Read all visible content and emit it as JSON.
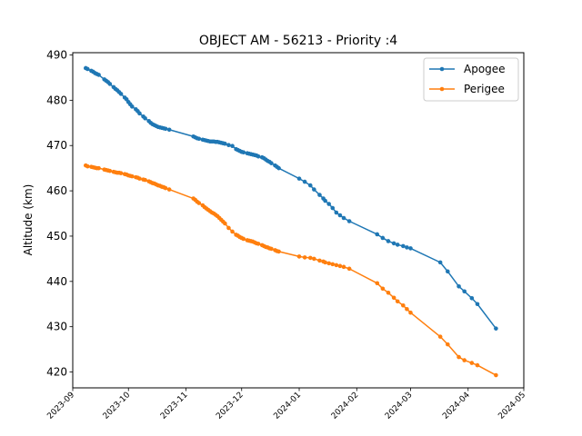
{
  "chart_data": {
    "type": "line",
    "title": "OBJECT AM - 56213 - Priority :4",
    "xlabel": "",
    "ylabel": "Altitude (km)",
    "ylim": [
      416.5,
      490.5
    ],
    "xlim": [
      "2023-09-01",
      "2024-05-01"
    ],
    "x_ticks": [
      "2023-09",
      "2023-10",
      "2023-11",
      "2023-12",
      "2024-01",
      "2024-02",
      "2024-03",
      "2024-04",
      "2024-05"
    ],
    "y_ticks": [
      420,
      430,
      440,
      450,
      460,
      470,
      480,
      490
    ],
    "grid": false,
    "legend_position": "upper right",
    "series": [
      {
        "name": "Apogee",
        "color": "#1f77b4",
        "x": [
          "2023-09-08",
          "2023-09-09",
          "2023-09-11",
          "2023-09-12",
          "2023-09-13",
          "2023-09-14",
          "2023-09-15",
          "2023-09-18",
          "2023-09-19",
          "2023-09-20",
          "2023-09-21",
          "2023-09-23",
          "2023-09-24",
          "2023-09-25",
          "2023-09-26",
          "2023-09-27",
          "2023-09-29",
          "2023-09-30",
          "2023-10-01",
          "2023-10-02",
          "2023-10-03",
          "2023-10-05",
          "2023-10-06",
          "2023-10-07",
          "2023-10-09",
          "2023-10-10",
          "2023-10-12",
          "2023-10-13",
          "2023-10-14",
          "2023-10-15",
          "2023-10-16",
          "2023-10-17",
          "2023-10-18",
          "2023-10-19",
          "2023-10-20",
          "2023-10-21",
          "2023-10-23",
          "2023-11-05",
          "2023-11-06",
          "2023-11-07",
          "2023-11-08",
          "2023-11-10",
          "2023-11-11",
          "2023-11-12",
          "2023-11-13",
          "2023-11-14",
          "2023-11-15",
          "2023-11-16",
          "2023-11-17",
          "2023-11-18",
          "2023-11-19",
          "2023-11-20",
          "2023-11-21",
          "2023-11-22",
          "2023-11-24",
          "2023-11-26",
          "2023-11-28",
          "2023-11-29",
          "2023-11-30",
          "2023-12-01",
          "2023-12-02",
          "2023-12-04",
          "2023-12-05",
          "2023-12-06",
          "2023-12-07",
          "2023-12-08",
          "2023-12-09",
          "2023-12-10",
          "2023-12-12",
          "2023-12-13",
          "2023-12-14",
          "2023-12-15",
          "2023-12-16",
          "2023-12-17",
          "2023-12-19",
          "2023-12-20",
          "2023-12-21",
          "2024-01-01",
          "2024-01-04",
          "2024-01-07",
          "2024-01-09",
          "2024-01-12",
          "2024-01-14",
          "2024-01-15",
          "2024-01-17",
          "2024-01-19",
          "2024-01-21",
          "2024-01-23",
          "2024-01-25",
          "2024-01-28",
          "2024-02-12",
          "2024-02-15",
          "2024-02-18",
          "2024-02-21",
          "2024-02-23",
          "2024-02-26",
          "2024-02-28",
          "2024-03-01",
          "2024-03-17",
          "2024-03-21",
          "2024-03-27",
          "2024-03-30",
          "2024-04-03",
          "2024-04-06",
          "2024-04-16"
        ],
        "y": [
          487.1,
          486.9,
          486.5,
          486.3,
          486.0,
          485.8,
          485.6,
          484.6,
          484.3,
          484.0,
          483.6,
          482.9,
          482.5,
          482.2,
          481.8,
          481.4,
          480.6,
          480.2,
          479.6,
          479.1,
          478.6,
          478.0,
          477.6,
          477.1,
          476.4,
          476.0,
          475.4,
          475.0,
          474.7,
          474.5,
          474.3,
          474.1,
          474.0,
          473.9,
          473.8,
          473.7,
          473.5,
          472.0,
          471.8,
          471.6,
          471.5,
          471.3,
          471.2,
          471.1,
          471.0,
          470.9,
          470.9,
          470.9,
          470.8,
          470.8,
          470.7,
          470.6,
          470.5,
          470.4,
          470.1,
          469.9,
          469.2,
          469.0,
          468.8,
          468.6,
          468.5,
          468.3,
          468.2,
          468.1,
          468.0,
          467.9,
          467.8,
          467.6,
          467.4,
          467.2,
          466.9,
          466.6,
          466.4,
          466.1,
          465.6,
          465.3,
          465.0,
          462.7,
          462.0,
          461.2,
          460.3,
          459.1,
          458.3,
          457.8,
          457.1,
          456.2,
          455.2,
          454.6,
          454.0,
          453.3,
          450.4,
          449.6,
          448.9,
          448.4,
          448.1,
          447.8,
          447.5,
          447.3,
          444.2,
          442.2,
          438.9,
          437.8,
          436.3,
          435.0,
          429.6
        ]
      },
      {
        "name": "Perigee",
        "color": "#ff7f0e",
        "x": [
          "2023-09-08",
          "2023-09-09",
          "2023-09-11",
          "2023-09-12",
          "2023-09-13",
          "2023-09-14",
          "2023-09-15",
          "2023-09-18",
          "2023-09-19",
          "2023-09-20",
          "2023-09-21",
          "2023-09-23",
          "2023-09-24",
          "2023-09-25",
          "2023-09-26",
          "2023-09-27",
          "2023-09-29",
          "2023-09-30",
          "2023-10-01",
          "2023-10-02",
          "2023-10-03",
          "2023-10-05",
          "2023-10-06",
          "2023-10-07",
          "2023-10-09",
          "2023-10-10",
          "2023-10-12",
          "2023-10-13",
          "2023-10-14",
          "2023-10-15",
          "2023-10-16",
          "2023-10-17",
          "2023-10-18",
          "2023-10-19",
          "2023-10-20",
          "2023-10-21",
          "2023-10-23",
          "2023-11-05",
          "2023-11-06",
          "2023-11-07",
          "2023-11-08",
          "2023-11-10",
          "2023-11-11",
          "2023-11-12",
          "2023-11-13",
          "2023-11-14",
          "2023-11-15",
          "2023-11-16",
          "2023-11-17",
          "2023-11-18",
          "2023-11-19",
          "2023-11-20",
          "2023-11-21",
          "2023-11-22",
          "2023-11-24",
          "2023-11-26",
          "2023-11-28",
          "2023-11-29",
          "2023-11-30",
          "2023-12-01",
          "2023-12-02",
          "2023-12-04",
          "2023-12-05",
          "2023-12-06",
          "2023-12-07",
          "2023-12-08",
          "2023-12-09",
          "2023-12-10",
          "2023-12-12",
          "2023-12-13",
          "2023-12-14",
          "2023-12-15",
          "2023-12-16",
          "2023-12-17",
          "2023-12-19",
          "2023-12-20",
          "2023-12-21",
          "2024-01-01",
          "2024-01-04",
          "2024-01-07",
          "2024-01-09",
          "2024-01-12",
          "2024-01-14",
          "2024-01-15",
          "2024-01-17",
          "2024-01-19",
          "2024-01-21",
          "2024-01-23",
          "2024-01-25",
          "2024-01-28",
          "2024-02-12",
          "2024-02-15",
          "2024-02-18",
          "2024-02-21",
          "2024-02-23",
          "2024-02-26",
          "2024-02-28",
          "2024-03-01",
          "2024-03-17",
          "2024-03-21",
          "2024-03-27",
          "2024-03-30",
          "2024-04-03",
          "2024-04-06",
          "2024-04-16"
        ],
        "y": [
          465.6,
          465.4,
          465.3,
          465.2,
          465.1,
          465.0,
          465.0,
          464.7,
          464.6,
          464.5,
          464.4,
          464.2,
          464.1,
          464.0,
          464.0,
          463.9,
          463.7,
          463.6,
          463.4,
          463.3,
          463.2,
          463.0,
          462.9,
          462.7,
          462.5,
          462.4,
          462.1,
          461.9,
          461.7,
          461.6,
          461.4,
          461.2,
          461.1,
          460.9,
          460.8,
          460.6,
          460.3,
          458.3,
          458.0,
          457.6,
          457.3,
          456.8,
          456.4,
          456.1,
          455.8,
          455.5,
          455.2,
          455.0,
          454.7,
          454.4,
          454.0,
          453.6,
          453.2,
          452.8,
          451.8,
          451.0,
          450.3,
          450.1,
          449.8,
          449.6,
          449.4,
          449.1,
          449.0,
          448.9,
          448.8,
          448.6,
          448.4,
          448.3,
          448.0,
          447.8,
          447.6,
          447.5,
          447.3,
          447.2,
          446.9,
          446.7,
          446.6,
          445.5,
          445.3,
          445.2,
          445.0,
          444.6,
          444.4,
          444.2,
          444.0,
          443.8,
          443.6,
          443.4,
          443.2,
          442.8,
          439.6,
          438.4,
          437.5,
          436.4,
          435.6,
          434.7,
          433.9,
          433.1,
          427.8,
          426.1,
          423.3,
          422.6,
          422.0,
          421.5,
          419.3
        ]
      }
    ]
  }
}
